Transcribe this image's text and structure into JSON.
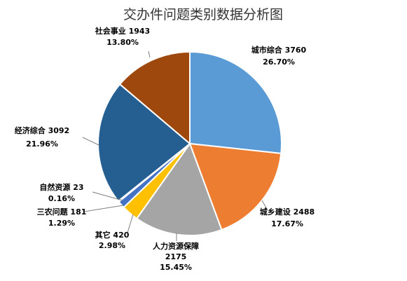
{
  "chart_data": {
    "type": "pie",
    "title": "交办件问题类别数据分析图",
    "slices": [
      {
        "name": "城市综合",
        "value": 3760,
        "percent": "26.70%",
        "color": "#5B9BD5",
        "value_text": "3760"
      },
      {
        "name": "城乡建设",
        "value": 2488,
        "percent": "17.67%",
        "color": "#ED7D31",
        "value_text": "2488"
      },
      {
        "name": "人力资源保障",
        "value": 2175,
        "percent": "15.45%",
        "color": "#A5A5A5",
        "value_text": "2175"
      },
      {
        "name": "其它",
        "value": 420,
        "percent": "2.98%",
        "color": "#FFC000",
        "value_text": "420"
      },
      {
        "name": "三农问题",
        "value": 181,
        "percent": "1.29%",
        "color": "#4472C4",
        "value_text": "181"
      },
      {
        "name": "自然资源",
        "value": 23,
        "percent": "0.16%",
        "color": "#70AD47",
        "value_text": "23"
      },
      {
        "name": "经济综合",
        "value": 3092,
        "percent": "21.96%",
        "color": "#255E91",
        "value_text": "3092"
      },
      {
        "name": "社会事业",
        "value": 1943,
        "percent": "13.80%",
        "color": "#9E480E",
        "value_text": "1943"
      }
    ],
    "legend": "none"
  }
}
